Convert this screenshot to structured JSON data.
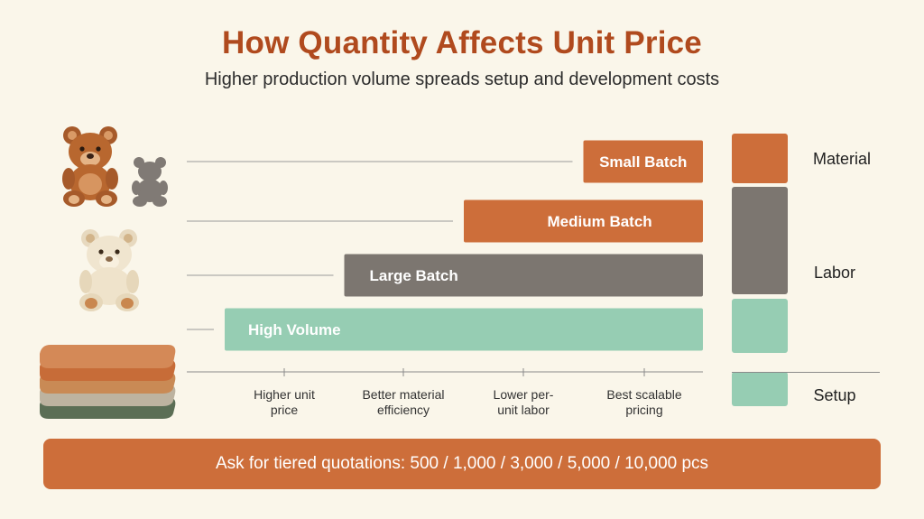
{
  "header": {
    "title": "How Quantity Affects Unit Price",
    "subtitle": "Higher production volume spreads setup and development costs"
  },
  "illustrations": {
    "brown_bear_icon": "teddy-bear-brown",
    "gray_bear_icon": "teddy-bear-silhouette-gray",
    "cream_bear_icon": "teddy-bear-cream",
    "fabric_stack_icon": "folded-fabric-stack"
  },
  "chart_data": {
    "type": "bar",
    "orientation": "horizontal",
    "categories": [
      "Small Batch",
      "Medium Batch",
      "Large Batch",
      "High Volume"
    ],
    "values": [
      1,
      2,
      3,
      4
    ],
    "bar_colors": [
      "#cd6e3a",
      "#cd6e3a",
      "#7c7670",
      "#96cdb3"
    ],
    "label_colors": [
      "#ffffff",
      "#ffffff",
      "#ffffff",
      "#ffffff"
    ],
    "x_tick_labels": [
      [
        "Higher unit",
        "price"
      ],
      [
        "Better material",
        "efficiency"
      ],
      [
        "Lower per-",
        "unit labor"
      ],
      [
        "Best scalable",
        "pricing"
      ]
    ],
    "xlim": [
      0,
      4
    ]
  },
  "legend": {
    "items": [
      {
        "label": "Material",
        "color": "#cd6e3a"
      },
      {
        "label": "Labor",
        "color": "#7c7670"
      },
      {
        "label": "Setup",
        "color": "#96cdb3"
      }
    ]
  },
  "footer": {
    "cta_text": "Ask for tiered quotations: 500 / 1,000 / 3,000 / 5,000 / 10,000 pcs"
  },
  "colors": {
    "title": "#b04a1e",
    "background": "#faf6ea",
    "orange": "#cd6e3a",
    "gray": "#7c7670",
    "mint": "#96cdb3"
  }
}
